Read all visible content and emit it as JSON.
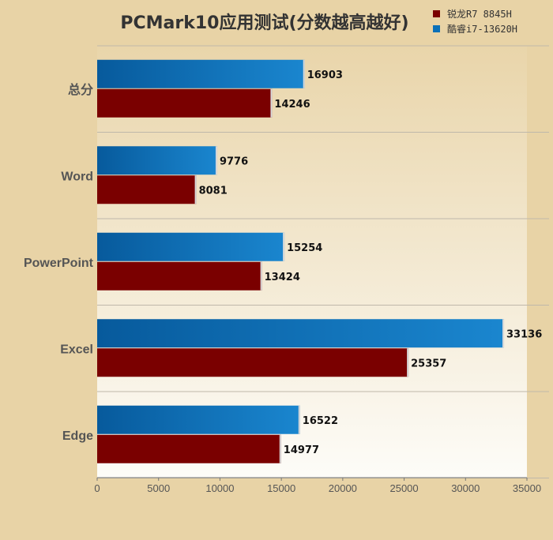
{
  "chart_data": {
    "type": "bar",
    "orientation": "horizontal",
    "title": "PCMark10应用测试(分数越高越好)",
    "categories": [
      "总分",
      "Word",
      "PowerPoint",
      "Excel",
      "Edge"
    ],
    "series": [
      {
        "name": "酷睿i7-13620H",
        "color": "#0a70b8",
        "values": [
          16903,
          9776,
          15254,
          33136,
          16522
        ]
      },
      {
        "name": "锐龙R7 8845H",
        "color": "#7a0000",
        "values": [
          14246,
          8081,
          13424,
          25357,
          14977
        ]
      }
    ],
    "legend_order": [
      "锐龙R7 8845H",
      "酷睿i7-13620H"
    ],
    "xlim": [
      0,
      35000
    ],
    "xticks": [
      0,
      5000,
      10000,
      15000,
      20000,
      25000,
      30000,
      35000
    ],
    "xlabel": "",
    "ylabel": "",
    "grid": false,
    "legend_position": "top-right",
    "data_labels": true
  }
}
